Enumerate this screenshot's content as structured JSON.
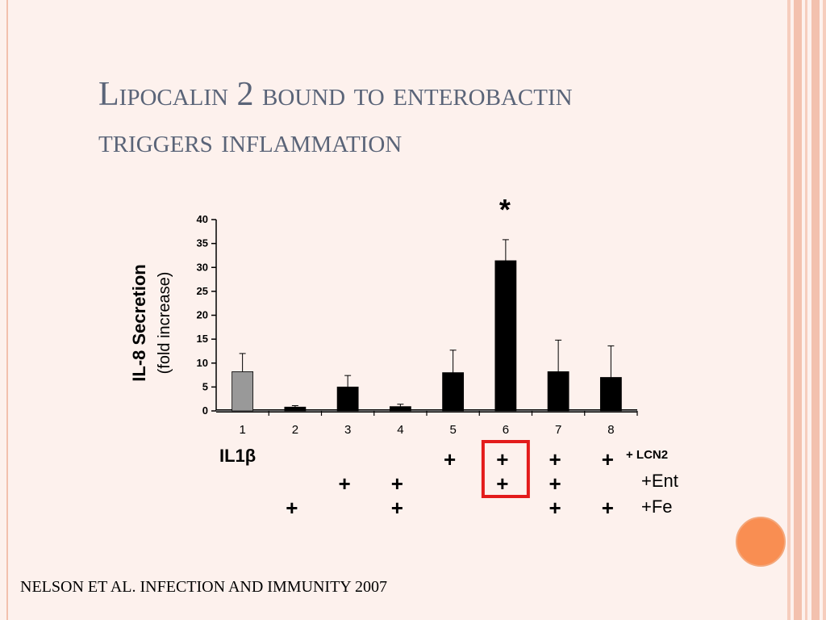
{
  "slide": {
    "title_line1": "Lipocalin 2 bound to enterobactin",
    "title_line2": "triggers inflammation",
    "citation": "NELSON ET AL. INFECTION AND IMMUNITY 2007",
    "colors": {
      "title": "#5a6478",
      "accent_dot": "#f98e52",
      "stripes": "#f3c1ae",
      "highlight_box": "#e31b1b"
    }
  },
  "chart_data": {
    "type": "bar",
    "ylabel": "IL-8 Secretion",
    "ylabel_sub": "(fold increase)",
    "ylim": [
      0,
      40
    ],
    "yticks": [
      0,
      5,
      10,
      15,
      20,
      25,
      30,
      35,
      40
    ],
    "categories": [
      "1",
      "2",
      "3",
      "4",
      "5",
      "6",
      "7",
      "8"
    ],
    "values": [
      8.2,
      0.8,
      5.0,
      0.9,
      8.0,
      31.4,
      8.2,
      7.0
    ],
    "errors": [
      3.8,
      0.3,
      2.4,
      0.5,
      4.7,
      4.4,
      6.6,
      6.6
    ],
    "bar_colors": [
      "#999999",
      "#000000",
      "#000000",
      "#000000",
      "#000000",
      "#000000",
      "#000000",
      "#000000"
    ],
    "significance": {
      "category": "6",
      "marker": "*"
    },
    "conditions": [
      {
        "label": "IL1β",
        "extra_label": "+ LCN2",
        "present": [
          false,
          false,
          false,
          false,
          true,
          true,
          true,
          true
        ]
      },
      {
        "label": "+Ent",
        "present": [
          false,
          false,
          true,
          true,
          false,
          true,
          true,
          false
        ]
      },
      {
        "label": "+Fe",
        "present": [
          false,
          true,
          false,
          true,
          false,
          false,
          true,
          true
        ]
      }
    ],
    "plus_symbol": "+",
    "highlight": {
      "category": "6"
    }
  }
}
